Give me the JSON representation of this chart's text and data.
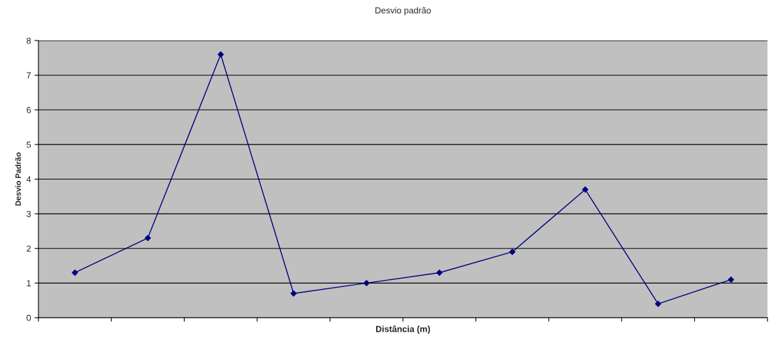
{
  "chart_data": {
    "type": "line",
    "title": "Desvio padrão",
    "xlabel": "Distância (m)",
    "ylabel": "Desvio Padrão",
    "categories": [
      null,
      null,
      null,
      null,
      null,
      null,
      null,
      null,
      null,
      null
    ],
    "series": [
      {
        "color": "#000080",
        "values": [
          1.3,
          2.3,
          7.6,
          0.7,
          1.0,
          1.3,
          1.9,
          3.7,
          0.4,
          1.1
        ]
      }
    ],
    "ylim": [
      0,
      8
    ],
    "yticks": [
      0,
      1,
      2,
      3,
      4,
      5,
      6,
      7,
      8
    ],
    "grid": "y",
    "marker": "diamond",
    "line_style": "solid",
    "tick_labels": "y"
  }
}
